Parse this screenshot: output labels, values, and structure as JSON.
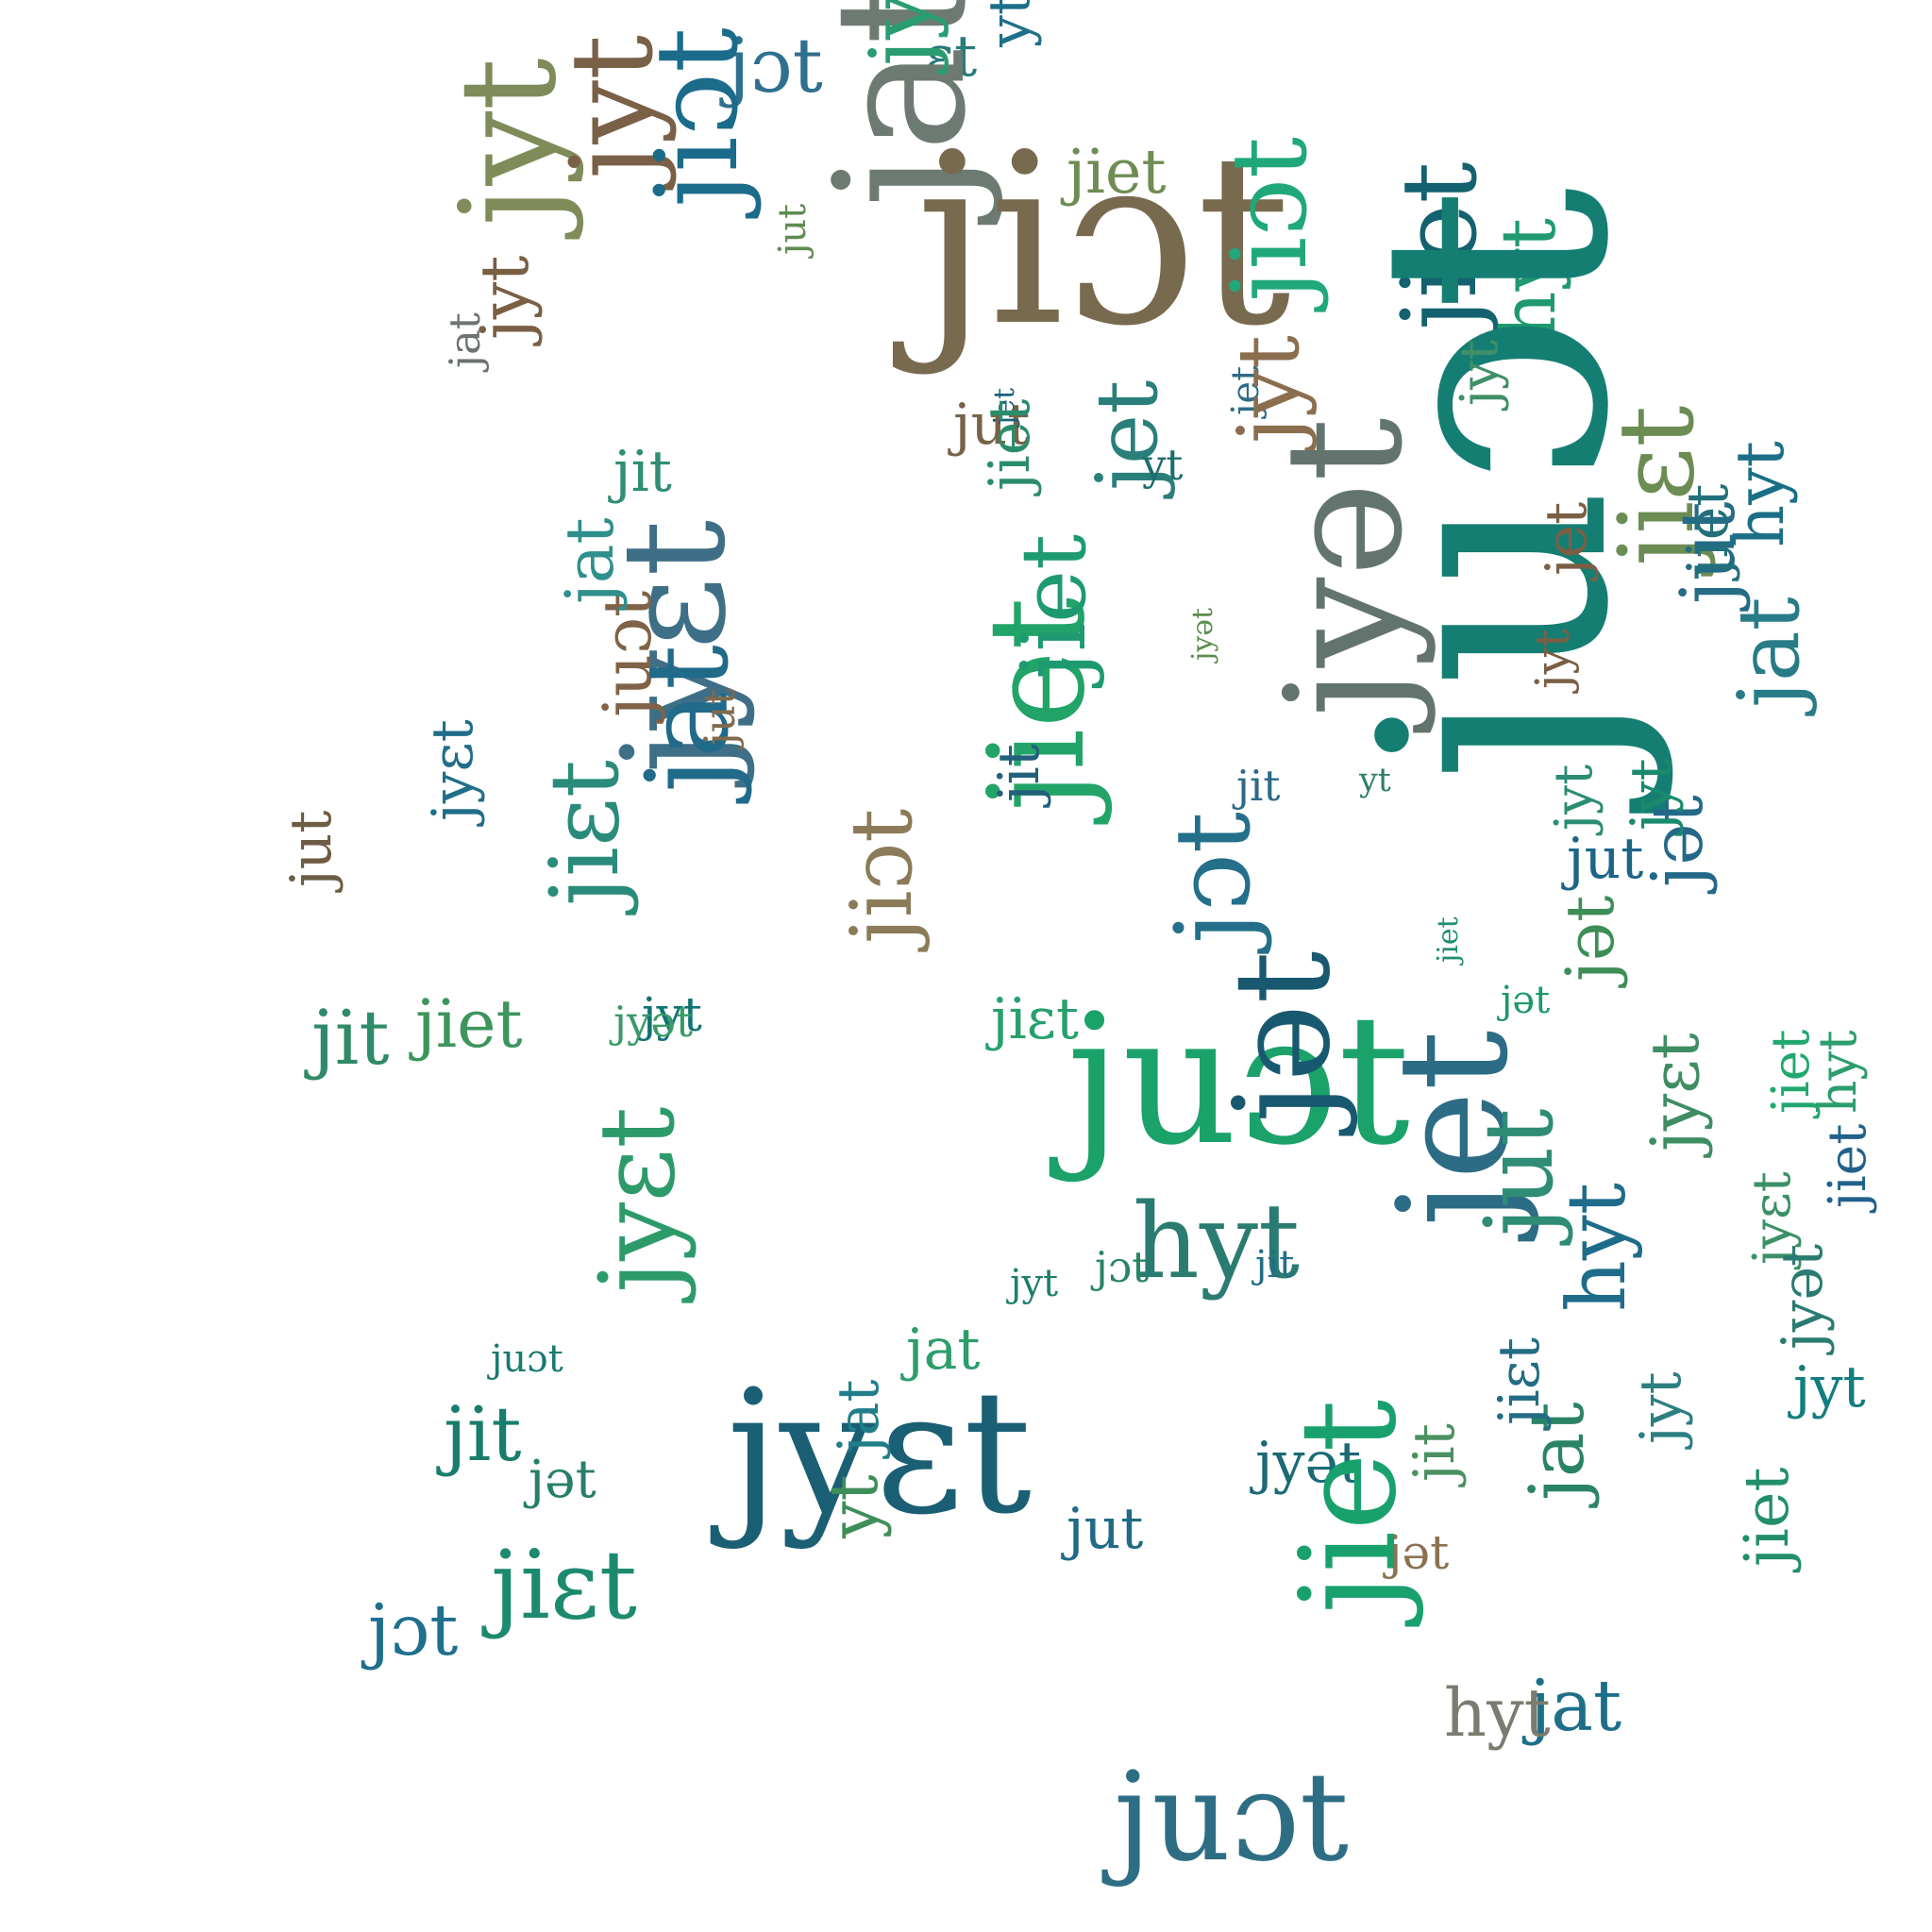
{
  "palette": [
    "#2f6f8f",
    "#0f7c8a",
    "#177f6d",
    "#269c63",
    "#45a86a",
    "#6b8c53",
    "#8d8b5e",
    "#7a6548",
    "#6e7a7a",
    "#2b627b",
    "#1f8a8a",
    "#3e8e71"
  ],
  "words": [
    {
      "text": "jɔt",
      "color": "#2f6f8f"
    },
    {
      "text": "ɛt",
      "color": "#2a7b7a"
    },
    {
      "text": "yt",
      "color": "#1d6f89"
    },
    {
      "text": "jat",
      "color": "#6d7a72"
    },
    {
      "text": "jyt",
      "color": "#2a9c72"
    },
    {
      "text": "jiet",
      "color": "#6e8c53"
    },
    {
      "text": "jiɔt",
      "color": "#786a4f"
    },
    {
      "text": "jyt",
      "color": "#7f8c5a"
    },
    {
      "text": "jyt",
      "color": "#7a6046"
    },
    {
      "text": "jiɔt",
      "color": "#1b6b8b"
    },
    {
      "text": "jut",
      "color": "#5f8b50"
    },
    {
      "text": "jyt",
      "color": "#7a5f45"
    },
    {
      "text": "jat",
      "color": "#6d7370"
    },
    {
      "text": "jiɔt",
      "color": "#21a87a"
    },
    {
      "text": "jiet",
      "color": "#14616f"
    },
    {
      "text": "hyt",
      "color": "#1e9a6e"
    },
    {
      "text": "juɔt",
      "color": "#157e72"
    },
    {
      "text": "jyt",
      "color": "#3f8f68"
    },
    {
      "text": "jet",
      "color": "#2e6c87"
    },
    {
      "text": "jit",
      "color": "#2f8e75"
    },
    {
      "text": "jut",
      "color": "#786349"
    },
    {
      "text": "jyt",
      "color": "#8b6e4e"
    },
    {
      "text": "jet",
      "color": "#2a7f7a"
    },
    {
      "text": "jet",
      "color": "#1a6379"
    },
    {
      "text": "jiet",
      "color": "#22a468"
    },
    {
      "text": "yt",
      "color": "#1e6d6e"
    },
    {
      "text": "jyət",
      "color": "#63746e"
    },
    {
      "text": "jyɛt",
      "color": "#3f6f87"
    },
    {
      "text": "jiet",
      "color": "#1e9a70"
    },
    {
      "text": "jiet",
      "color": "#2b8c6b"
    },
    {
      "text": "jet",
      "color": "#7b5f45"
    },
    {
      "text": "jyt",
      "color": "#7a5f45"
    },
    {
      "text": "jiɛt",
      "color": "#6b8c53"
    },
    {
      "text": "jət",
      "color": "#246889"
    },
    {
      "text": "jat",
      "color": "#287c87"
    },
    {
      "text": "jut",
      "color": "#246b86"
    },
    {
      "text": "jit",
      "color": "#21617b"
    },
    {
      "text": "juɔt",
      "color": "#1aa26a"
    },
    {
      "text": "jyt",
      "color": "#2b8c74"
    },
    {
      "text": "jiet",
      "color": "#236f7b"
    },
    {
      "text": "jət",
      "color": "#3d8d57"
    },
    {
      "text": "jut",
      "color": "#1d6588"
    },
    {
      "text": "jyt",
      "color": "#1a8a6d"
    },
    {
      "text": "hyt",
      "color": "#1a6f87"
    },
    {
      "text": "jyət",
      "color": "#5b8d4e"
    },
    {
      "text": "yt",
      "color": "#2f7f66"
    },
    {
      "text": "jit",
      "color": "#2c6a8b"
    },
    {
      "text": "jiet",
      "color": "#1d8f72"
    },
    {
      "text": "jət",
      "color": "#1b9969"
    },
    {
      "text": "jiɛt",
      "color": "#2a8b7a"
    },
    {
      "text": "juɔt",
      "color": "#7f6247"
    },
    {
      "text": "jyɛt",
      "color": "#206e89"
    },
    {
      "text": "jiɔt",
      "color": "#8b7b58"
    },
    {
      "text": "jit",
      "color": "#2f8a67"
    },
    {
      "text": "jut",
      "color": "#6e5d45"
    },
    {
      "text": "jat",
      "color": "#2f8f8c"
    },
    {
      "text": "jiet",
      "color": "#3d955c"
    },
    {
      "text": "jyt",
      "color": "#117272"
    },
    {
      "text": "jat",
      "color": "#206a8a"
    },
    {
      "text": "jut",
      "color": "#7f6a4b"
    },
    {
      "text": "jyət",
      "color": "#3b9a67"
    },
    {
      "text": "jət",
      "color": "#19596f"
    },
    {
      "text": "jɔt",
      "color": "#246f8a"
    },
    {
      "text": "hyt",
      "color": "#2a7c70"
    },
    {
      "text": "jiɛt",
      "color": "#28a06c"
    },
    {
      "text": "jyɛt",
      "color": "#1b5f74"
    },
    {
      "text": "jat",
      "color": "#2d9d6a"
    },
    {
      "text": "jet",
      "color": "#2c6c84"
    },
    {
      "text": "jut",
      "color": "#2f8c75"
    },
    {
      "text": "hyt",
      "color": "#1e6c8a"
    },
    {
      "text": "jyt",
      "color": "#127e80"
    },
    {
      "text": "jyɛt",
      "color": "#3b9165"
    },
    {
      "text": "jat",
      "color": "#2a8366"
    },
    {
      "text": "jiet",
      "color": "#22a86f"
    },
    {
      "text": "jɔt",
      "color": "#1f6f8d"
    },
    {
      "text": "jit",
      "color": "#197d6c"
    },
    {
      "text": "juɔt",
      "color": "#1a7a72"
    },
    {
      "text": "jət",
      "color": "#277f6a"
    },
    {
      "text": "jyɛt",
      "color": "#3f8d62"
    },
    {
      "text": "jiet",
      "color": "#228f6b"
    },
    {
      "text": "jyət",
      "color": "#2a7b70"
    },
    {
      "text": "jiet",
      "color": "#21618a"
    },
    {
      "text": "jɔt",
      "color": "#298564"
    },
    {
      "text": "hyt",
      "color": "#2c9d6c"
    },
    {
      "text": "jyt",
      "color": "#1d7f6d"
    },
    {
      "text": "jit",
      "color": "#226f86"
    },
    {
      "text": "jiɛt",
      "color": "#1d8a6f"
    },
    {
      "text": "yt",
      "color": "#3e8e58"
    },
    {
      "text": "jat",
      "color": "#1f7e89"
    },
    {
      "text": "jyɛt",
      "color": "#2d9a6a"
    },
    {
      "text": "jyt",
      "color": "#2d7f82"
    },
    {
      "text": "jit",
      "color": "#4b9061"
    },
    {
      "text": "jiɛt",
      "color": "#236d85"
    },
    {
      "text": "jyət",
      "color": "#1b6a76"
    },
    {
      "text": "jət",
      "color": "#8b7253"
    },
    {
      "text": "jut",
      "color": "#216b86"
    },
    {
      "text": "jiet",
      "color": "#18a16d"
    },
    {
      "text": "jat",
      "color": "#1d6f89"
    },
    {
      "text": "juɔt",
      "color": "#2e6e85"
    },
    {
      "text": "hyt",
      "color": "#7a7c70"
    }
  ]
}
